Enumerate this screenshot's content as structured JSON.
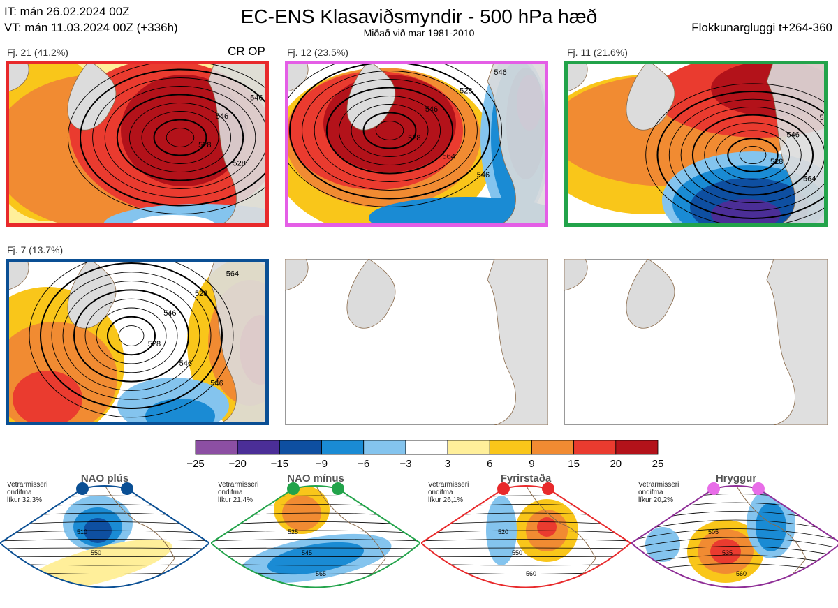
{
  "header": {
    "it_line": "IT: mán 26.02.2024 00Z",
    "vt_line": "VT: mán 11.03.2024 00Z  (+336h)",
    "title": "EC-ENS Klasaviðsmyndir - 500 hPa hæð",
    "subtitle": "Miðað við mar 1981-2010",
    "window": "Flokkunargluggi t+264-360"
  },
  "colors": {
    "frame_red": "#e8292b",
    "frame_magenta": "#e45ee6",
    "frame_green": "#22a34a",
    "frame_blue": "#0a4f94",
    "land": "#dcdcdc",
    "coast": "#8a6a4a"
  },
  "chart_data": {
    "type": "heatmap",
    "description_units": "500 hPa height anomaly (dam)",
    "colorbar": {
      "ticks": [
        "−25",
        "−20",
        "−15",
        "−9",
        "−6",
        "−3",
        "3",
        "6",
        "9",
        "15",
        "20",
        "25"
      ],
      "colors": [
        "#8c4fa3",
        "#4b2e97",
        "#0e4fa1",
        "#1a8bd4",
        "#84c4ee",
        "#ffffff",
        "#ffef9a",
        "#f9c61a",
        "#f18b32",
        "#ea3b2f",
        "#b3121a"
      ]
    },
    "clusters": [
      {
        "label": "Fj. 21 (41.2%)",
        "extra": "CR OP",
        "frame": "#e8292b",
        "percent": 41.2
      },
      {
        "label": "Fj. 12 (23.5%)",
        "extra": "",
        "frame": "#e45ee6",
        "percent": 23.5
      },
      {
        "label": "Fj. 11 (21.6%)",
        "extra": "",
        "frame": "#22a34a",
        "percent": 21.6
      },
      {
        "label": "Fj. 7 (13.7%)",
        "extra": "",
        "frame": "#0a4f94",
        "percent": 13.7
      }
    ],
    "regimes": [
      {
        "name": "NAO plús",
        "note": [
          "Vetrarmisseri",
          "ondifma",
          "líkur 32,3%"
        ],
        "color": "#0a4f94",
        "dots": [
          "#0a4f94",
          "#0a4f94"
        ],
        "contours": [
          "510",
          "550"
        ]
      },
      {
        "name": "NAO mínus",
        "note": [
          "Vetrarmisseri",
          "ondifma",
          "líkur 21,4%"
        ],
        "color": "#22a34a",
        "dots": [
          "#22a34a",
          "#22a34a"
        ],
        "contours": [
          "525",
          "545",
          "565"
        ]
      },
      {
        "name": "Fyrirstaða",
        "note": [
          "Vetrarmisseri",
          "ondifma",
          "líkur 26,1%"
        ],
        "color": "#e8292b",
        "dots": [
          "#e8292b",
          "#e8292b"
        ],
        "contours": [
          "520",
          "550",
          "560"
        ]
      },
      {
        "name": "Hryggur",
        "note": [
          "Vetrarmisseri",
          "ondifma",
          "líkur 20,2%"
        ],
        "color": "#8e2d96",
        "dots": [
          "#e86de8",
          "#e86de8"
        ],
        "contours": [
          "505",
          "535",
          "560"
        ]
      }
    ],
    "contour_labels": {
      "p1": [
        "528",
        "546",
        "528",
        "546",
        "546",
        "528"
      ],
      "p2": [
        "528",
        "546",
        "564",
        "528",
        "546",
        "546"
      ],
      "p3": [
        "528",
        "546",
        "564",
        "528",
        "546",
        "546"
      ],
      "p4": [
        "528",
        "546",
        "546",
        "528",
        "546",
        "564"
      ]
    }
  }
}
